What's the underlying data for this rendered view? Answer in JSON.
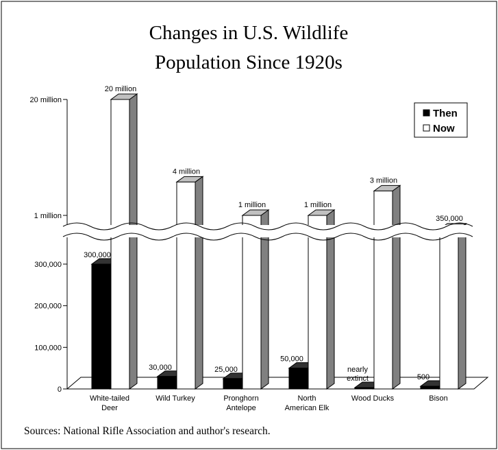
{
  "chart_data": {
    "type": "bar",
    "title_line1": "Changes in U.S. Wildlife",
    "title_line2": "Population Since 1920s",
    "source": "Sources: National Rifle Association and author's research.",
    "categories": [
      [
        "White-tailed",
        "Deer"
      ],
      [
        "Wild Turkey"
      ],
      [
        "Pronghorn",
        "Antelope"
      ],
      [
        "North",
        "American Elk"
      ],
      [
        "Wood Ducks"
      ],
      [
        "Bison"
      ]
    ],
    "series": [
      {
        "name": "Then",
        "color": "#000000",
        "values": [
          300000,
          30000,
          25000,
          50000,
          0,
          500
        ],
        "labels": [
          [
            "300,000"
          ],
          [
            "30,000"
          ],
          [
            "25,000"
          ],
          [
            "50,000"
          ],
          [
            "nearly",
            "extinct"
          ],
          [
            "500"
          ]
        ]
      },
      {
        "name": "Now",
        "color": "#ffffff",
        "values": [
          20000000,
          4000000,
          1000000,
          1000000,
          3000000,
          350000
        ],
        "labels": [
          [
            "20 million"
          ],
          [
            "4 million"
          ],
          [
            "1 million"
          ],
          [
            "1 million"
          ],
          [
            "3 million"
          ],
          [
            "350,000"
          ]
        ]
      }
    ],
    "y_axis": {
      "scale": "broken",
      "lower_range": [
        0,
        300000
      ],
      "lower_ticks": [
        0,
        100000,
        200000,
        300000
      ],
      "lower_tick_labels": [
        "0",
        "100,000",
        "200,000",
        "300,000"
      ],
      "upper_range": [
        1000000,
        20000000
      ],
      "upper_ticks": [
        1000000,
        20000000
      ],
      "upper_tick_labels": [
        "1 million",
        "20 million"
      ]
    },
    "legend": {
      "placement": "top-right",
      "entries": [
        "Then",
        "Now"
      ]
    },
    "grid": false
  }
}
